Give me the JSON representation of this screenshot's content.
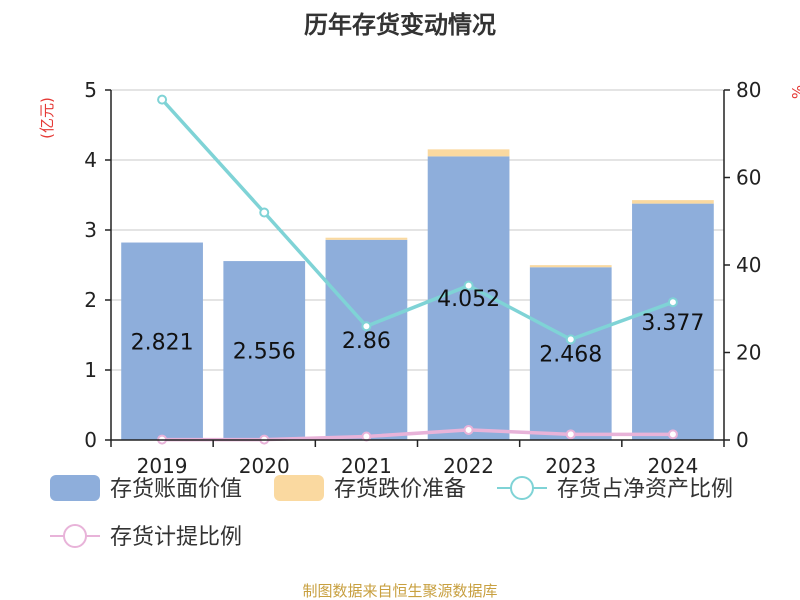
{
  "chart_data": {
    "type": "bar",
    "title": "历年存货变动情况",
    "categories": [
      "2019",
      "2020",
      "2021",
      "2022",
      "2023",
      "2024"
    ],
    "y_left": {
      "label": "(亿元)",
      "ylim": [
        0,
        5
      ],
      "ticks": [
        0,
        1,
        2,
        3,
        4,
        5
      ]
    },
    "y_right": {
      "label": "%",
      "ylim": [
        0,
        80
      ],
      "ticks": [
        0,
        20,
        40,
        60,
        80
      ]
    },
    "bar_series": [
      {
        "name": "存货账面价值",
        "color": "#8eaedb",
        "values": [
          2.821,
          2.556,
          2.86,
          4.052,
          2.468,
          3.377
        ],
        "data_labels": [
          "2.821",
          "2.556",
          "2.86",
          "4.052",
          "2.468",
          "3.377"
        ]
      },
      {
        "name": "存货跌价准备",
        "color": "#fad9a0",
        "values": [
          0.0,
          0.0,
          0.03,
          0.1,
          0.03,
          0.05
        ]
      }
    ],
    "line_series": [
      {
        "name": "存货占净资产比例",
        "color": "#7fd3d6",
        "values": [
          77.8,
          52.0,
          26.0,
          35.3,
          23.0,
          31.5
        ]
      },
      {
        "name": "存货计提比例",
        "color": "#e8b3d9",
        "values": [
          0.1,
          0.1,
          0.8,
          2.3,
          1.3,
          1.3
        ]
      }
    ],
    "grid": true,
    "legend_position": "bottom"
  },
  "source_text": "制图数据来自恒生聚源数据库"
}
